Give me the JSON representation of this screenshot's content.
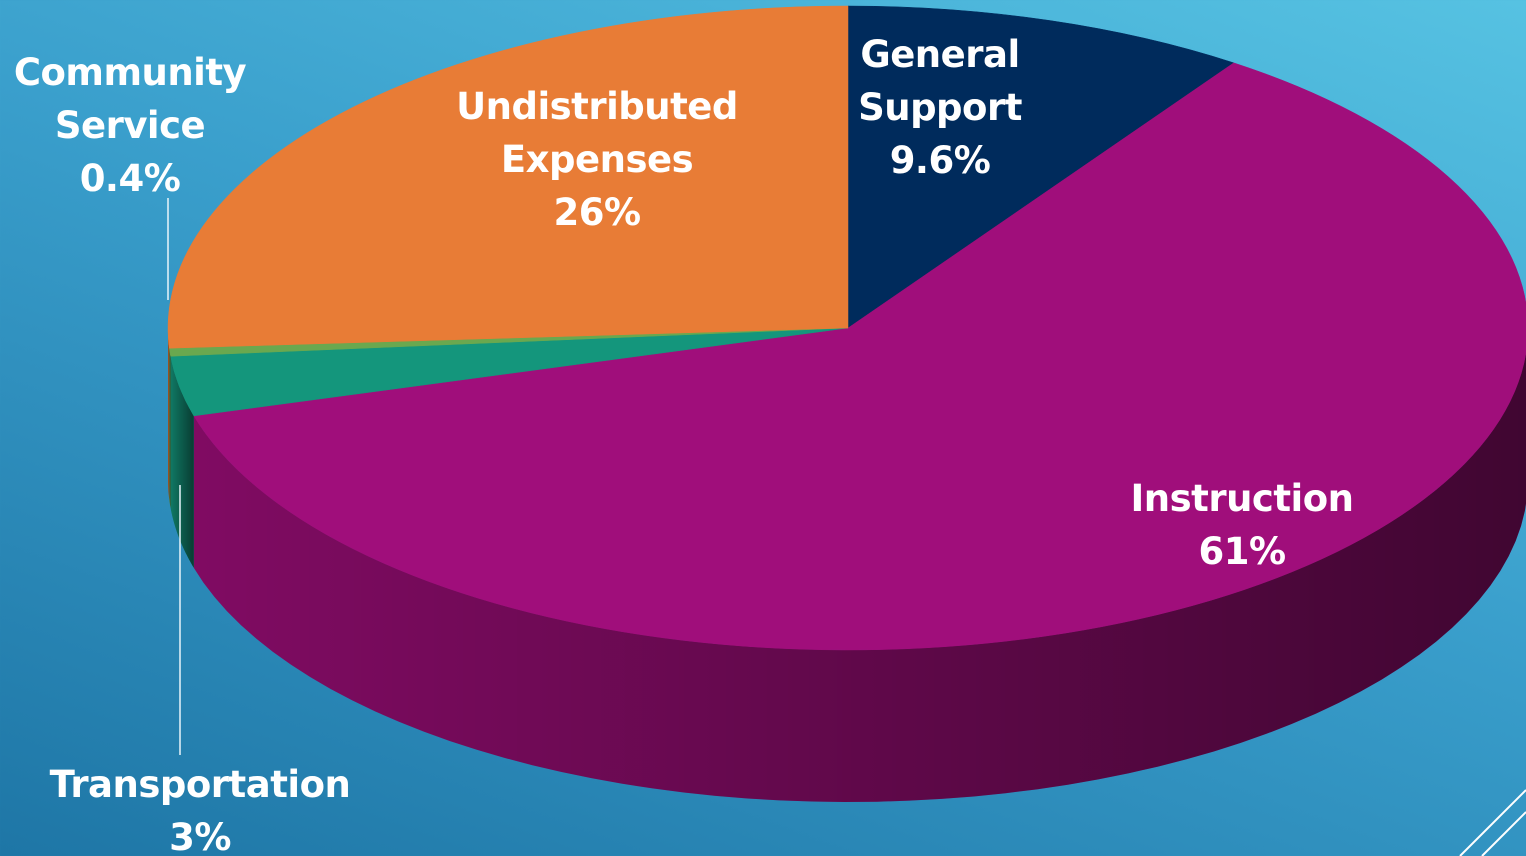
{
  "chart_data": {
    "type": "pie",
    "categories": [
      "General Support",
      "Instruction",
      "Transportation",
      "Community Service",
      "Undistributed Expenses"
    ],
    "values": [
      9.6,
      61,
      3,
      0.4,
      26
    ],
    "value_labels": [
      "9.6%",
      "61%",
      "3%",
      "0.4%",
      "26%"
    ],
    "colors": [
      "#002b5c",
      "#a00e7b",
      "#14967c",
      "#6aa84f",
      "#e87c36"
    ]
  }
}
